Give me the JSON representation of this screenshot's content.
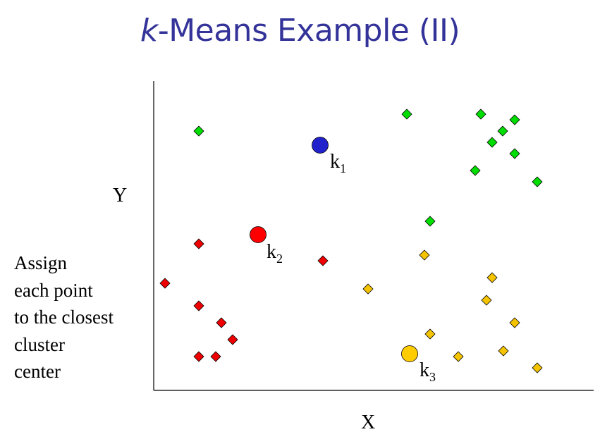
{
  "title": {
    "italic": "k",
    "rest": "-Means Example (II)"
  },
  "axes": {
    "x_label": "X",
    "y_label": "Y"
  },
  "note_lines": [
    "Assign",
    "each point",
    "to the closest",
    "cluster",
    "center"
  ],
  "colors": {
    "title": "#333399",
    "cluster_1": "#00dd00",
    "cluster_2": "#ee0000",
    "cluster_3": "#f5c400",
    "center_1": "#2222cc",
    "center_2": "#ff0000",
    "center_3": "#ffcc00",
    "outline": "#000000"
  },
  "centers": [
    {
      "label_base": "k",
      "label_sub": "1",
      "cluster": 1,
      "color_key": "center_1"
    },
    {
      "label_base": "k",
      "label_sub": "2",
      "cluster": 2,
      "color_key": "center_2"
    },
    {
      "label_base": "k",
      "label_sub": "3",
      "cluster": 3,
      "color_key": "center_3"
    }
  ]
}
